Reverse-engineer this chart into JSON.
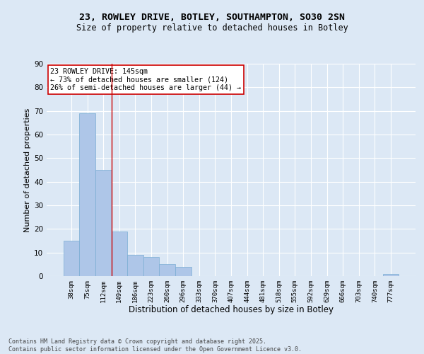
{
  "title1": "23, ROWLEY DRIVE, BOTLEY, SOUTHAMPTON, SO30 2SN",
  "title2": "Size of property relative to detached houses in Botley",
  "xlabel": "Distribution of detached houses by size in Botley",
  "ylabel": "Number of detached properties",
  "categories": [
    "38sqm",
    "75sqm",
    "112sqm",
    "149sqm",
    "186sqm",
    "223sqm",
    "260sqm",
    "296sqm",
    "333sqm",
    "370sqm",
    "407sqm",
    "444sqm",
    "481sqm",
    "518sqm",
    "555sqm",
    "592sqm",
    "629sqm",
    "666sqm",
    "703sqm",
    "740sqm",
    "777sqm"
  ],
  "values": [
    15,
    69,
    45,
    19,
    9,
    8,
    5,
    4,
    0,
    0,
    0,
    0,
    0,
    0,
    0,
    0,
    0,
    0,
    0,
    0,
    1
  ],
  "bar_color": "#aec6e8",
  "bar_edge_color": "#7aadd4",
  "background_color": "#dce8f5",
  "grid_color": "#ffffff",
  "vline_x": 2.5,
  "vline_color": "#cc0000",
  "annotation_text": "23 ROWLEY DRIVE: 145sqm\n← 73% of detached houses are smaller (124)\n26% of semi-detached houses are larger (44) →",
  "annotation_box_facecolor": "#ffffff",
  "annotation_box_edgecolor": "#cc0000",
  "footer1": "Contains HM Land Registry data © Crown copyright and database right 2025.",
  "footer2": "Contains public sector information licensed under the Open Government Licence v3.0.",
  "ylim": [
    0,
    90
  ],
  "yticks": [
    0,
    10,
    20,
    30,
    40,
    50,
    60,
    70,
    80,
    90
  ]
}
